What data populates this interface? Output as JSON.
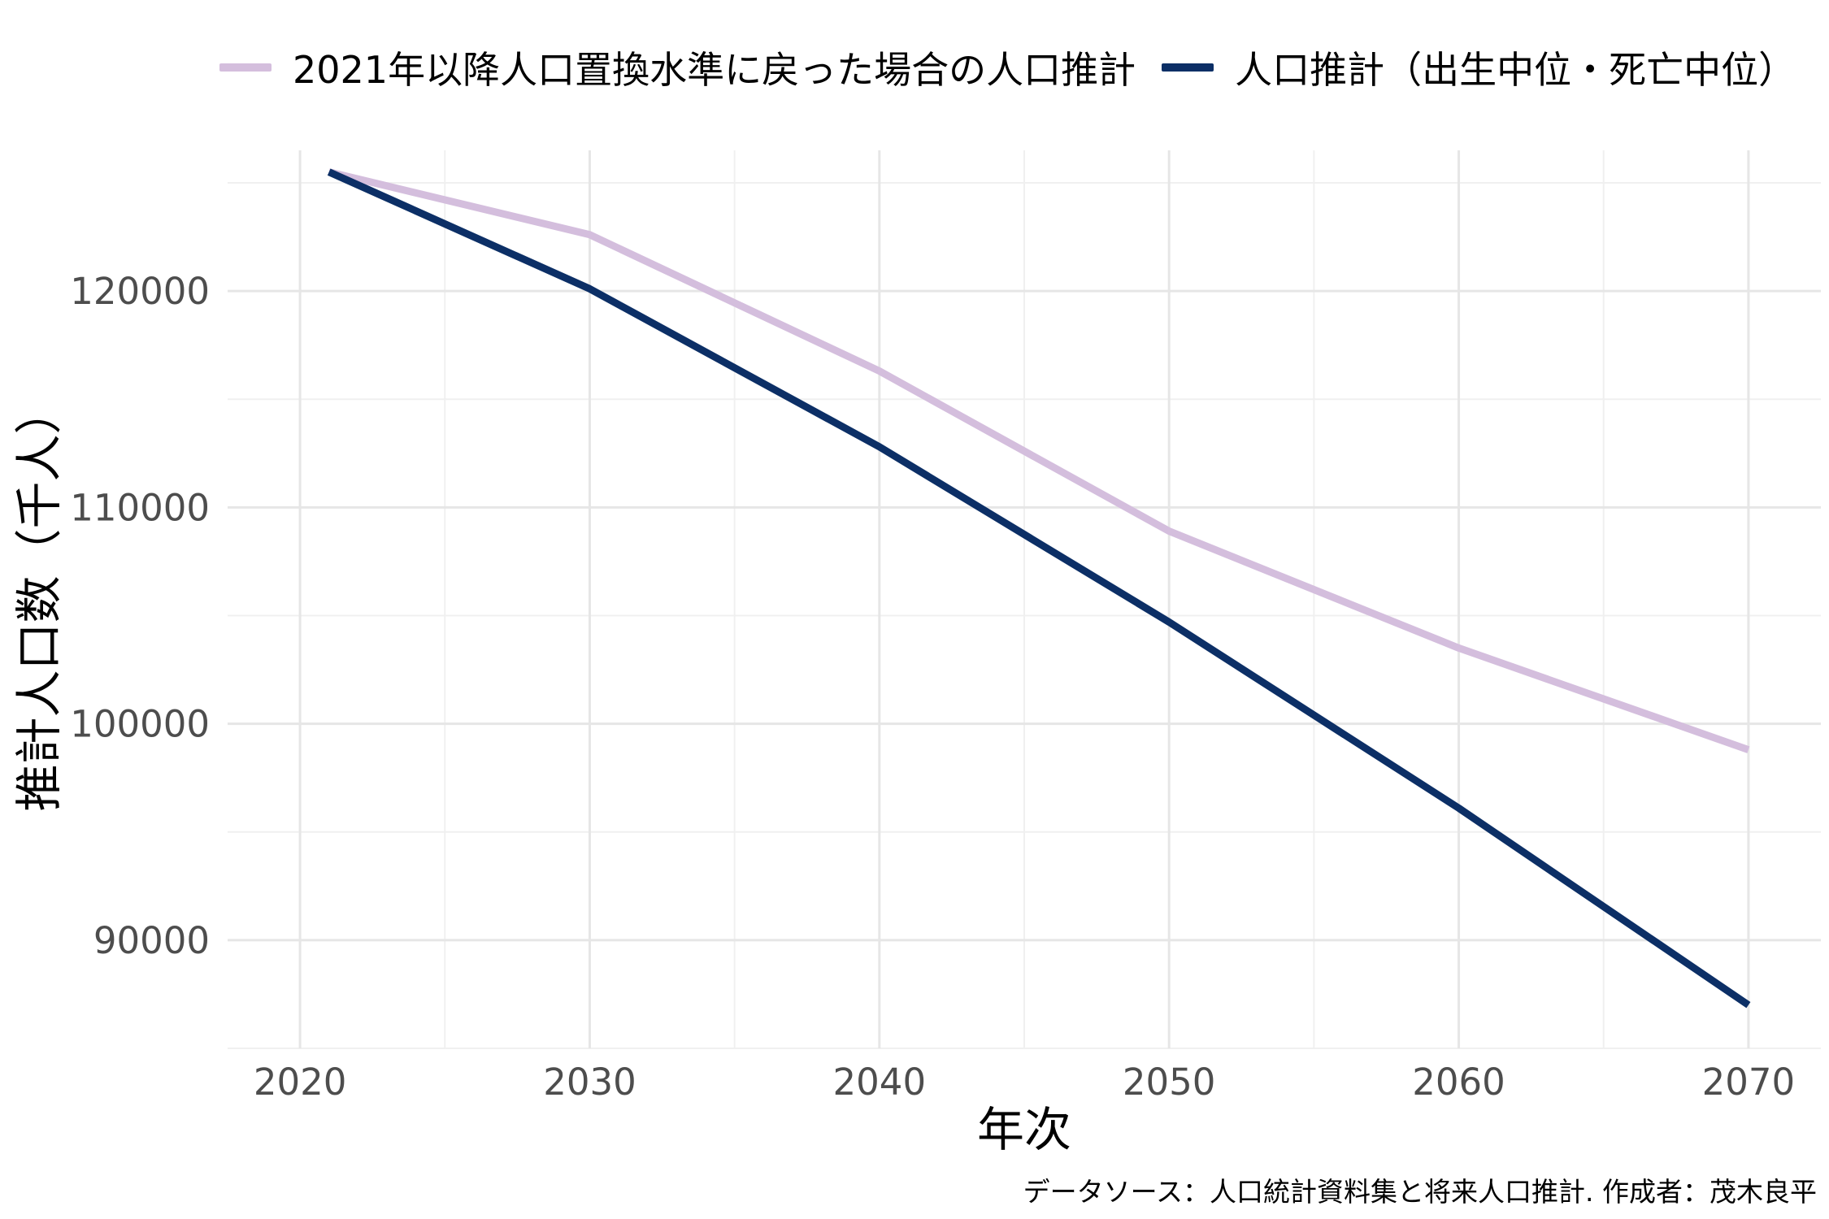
{
  "chart_data": {
    "type": "line",
    "xlabel": "年次",
    "ylabel": "推計人口数（千人）",
    "caption": "データソース：人口統計資料集と将来人口推計. 作成者：茂木良平",
    "legend_position": "top",
    "grid": true,
    "xlim": [
      2017.5,
      2072.5
    ],
    "ylim": [
      85000,
      126500
    ],
    "x_ticks": [
      2020,
      2030,
      2040,
      2050,
      2060,
      2070
    ],
    "x_tick_labels": [
      "2020",
      "2030",
      "2040",
      "2050",
      "2060",
      "2070"
    ],
    "y_ticks": [
      90000,
      100000,
      110000,
      120000
    ],
    "y_tick_labels": [
      "90000",
      "100000",
      "110000",
      "120000"
    ],
    "series": [
      {
        "name": "2021年以降人口置換水準に戻った場合の人口推計",
        "color": "#d4bedd",
        "x": [
          2021,
          2030,
          2040,
          2050,
          2060,
          2070
        ],
        "y": [
          125500,
          122600,
          116300,
          108900,
          103500,
          98800
        ]
      },
      {
        "name": "人口推計（出生中位・死亡中位）",
        "color": "#0c2f66",
        "x": [
          2021,
          2030,
          2040,
          2050,
          2060,
          2070
        ],
        "y": [
          125500,
          120100,
          112800,
          104700,
          96100,
          87000
        ]
      }
    ]
  }
}
